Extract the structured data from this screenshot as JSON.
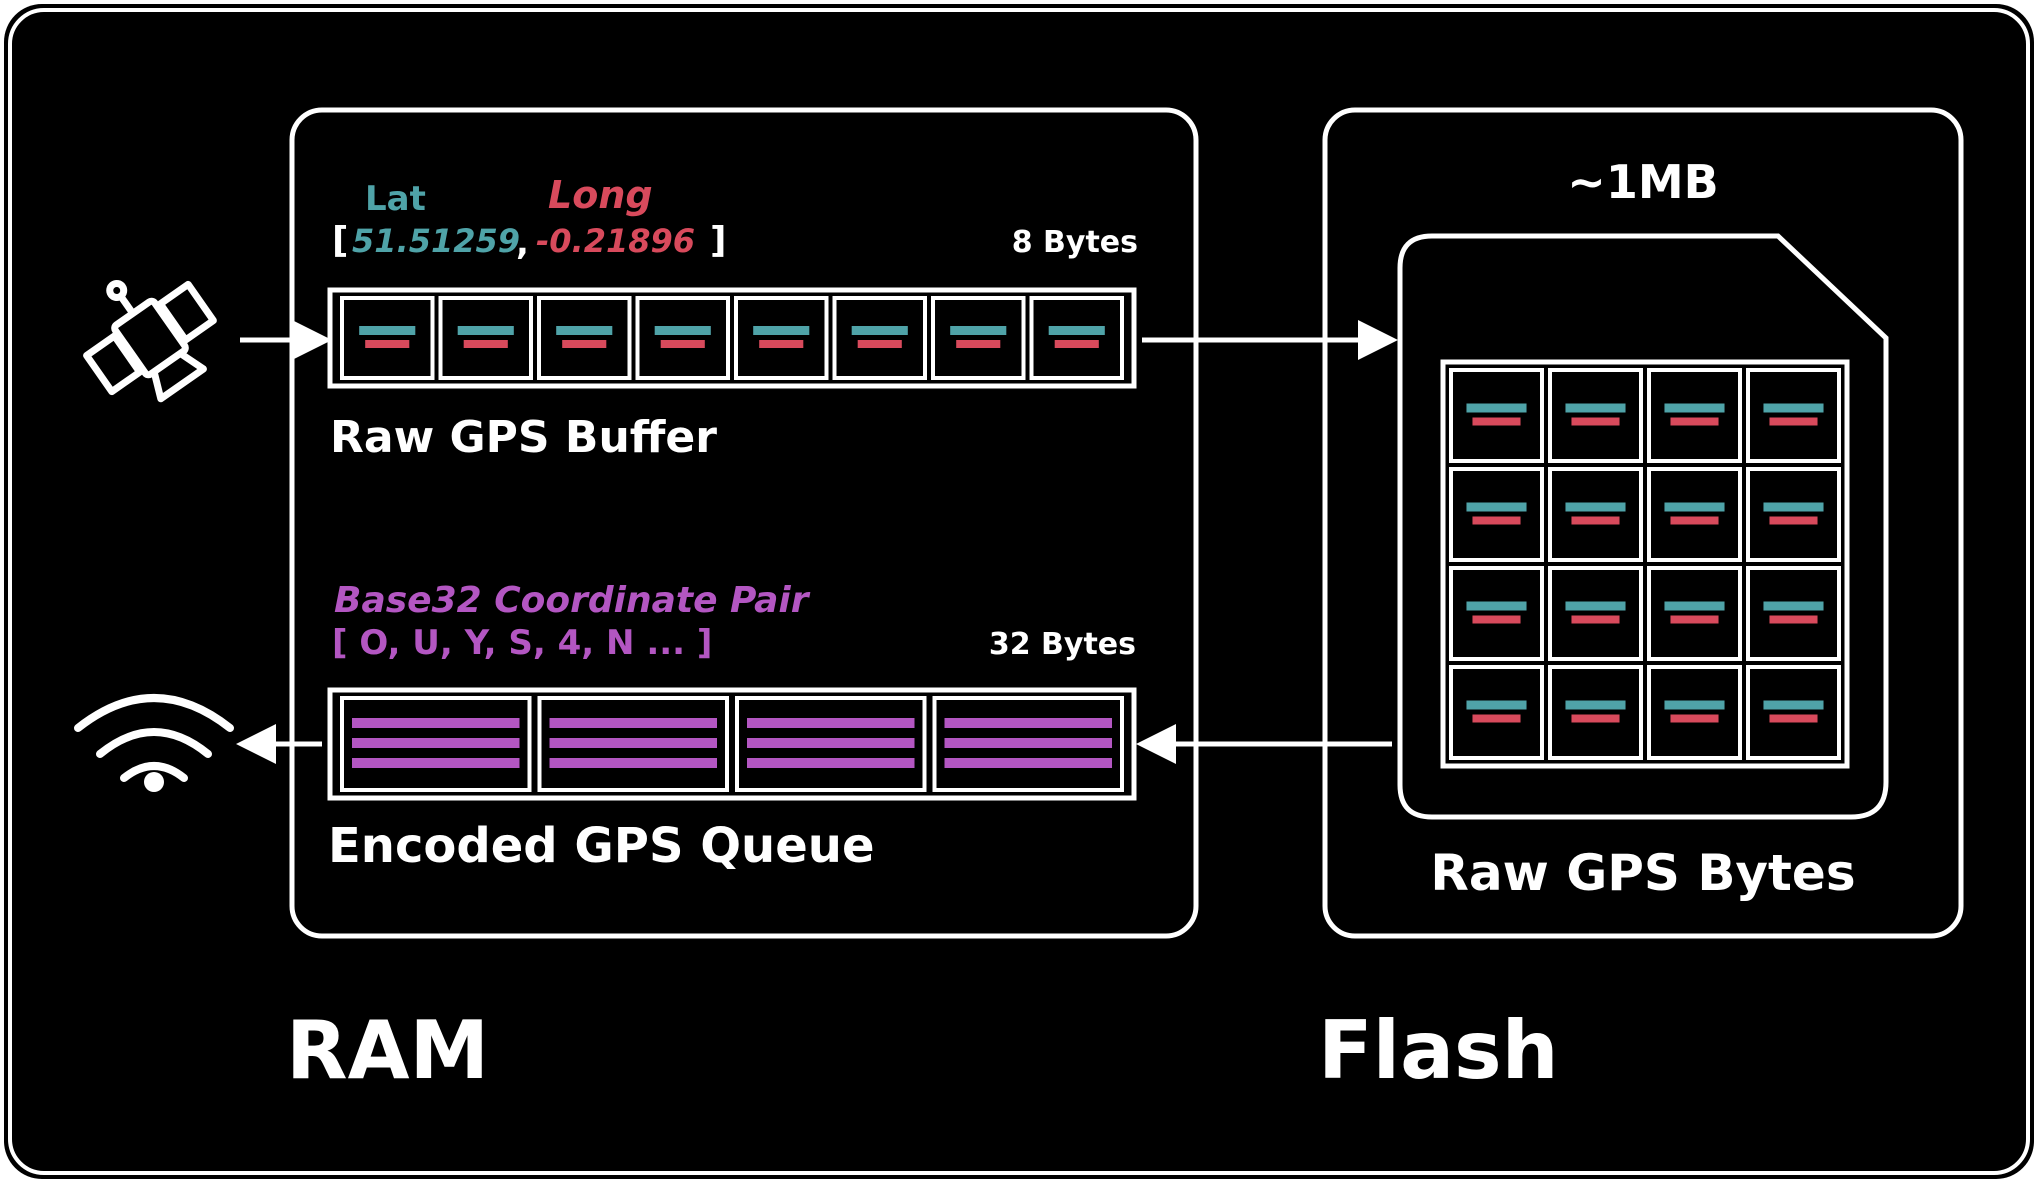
{
  "ram": {
    "section_label": "RAM",
    "raw_buffer": {
      "lat_label": "Lat",
      "long_label": "Long",
      "bracket_open": "[",
      "lat_value": "51.51259",
      "comma": ",",
      "long_value": "-0.21896",
      "bracket_close": "]",
      "size_label": "8 Bytes",
      "cell_count": 8,
      "label": "Raw GPS Buffer"
    },
    "encoded_queue": {
      "header_label": "Base32 Coordinate Pair",
      "sequence": "[ O, U, Y, S, 4, N ... ]",
      "size_label": "32 Bytes",
      "cell_count": 4,
      "label": "Encoded GPS Queue"
    }
  },
  "flash": {
    "section_label": "Flash",
    "capacity_label": "~1MB",
    "grid_rows": 4,
    "grid_cols": 4,
    "label": "Raw GPS Bytes"
  },
  "icons": {
    "input": "satellite-icon",
    "output": "wifi-icon"
  },
  "colors": {
    "background": "#000000",
    "foreground": "#ffffff",
    "latitude": "#4fa3a8",
    "longitude": "#d84a5c",
    "encoded": "#b356c2"
  }
}
